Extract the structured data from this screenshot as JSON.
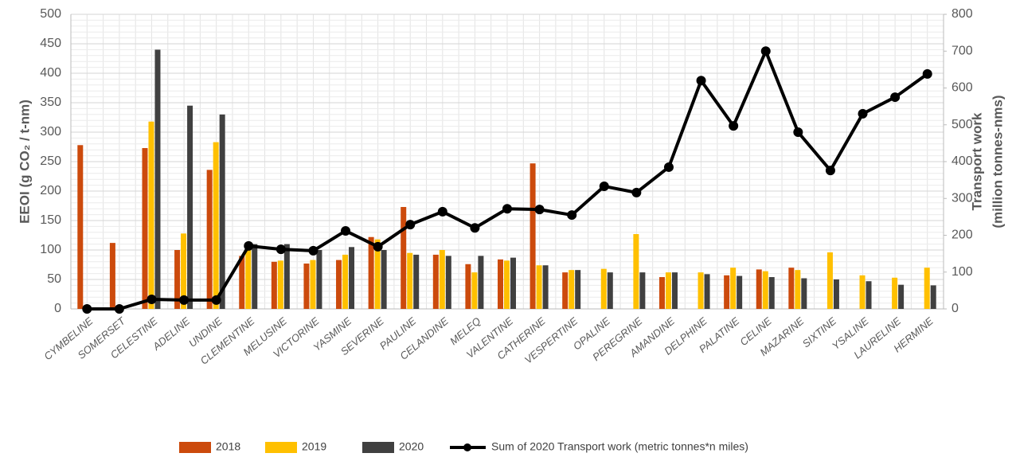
{
  "chart_data": {
    "type": "bar",
    "y_label": "EEOI (g CO₂ / t-nm)",
    "y2_label": [
      "Transport work",
      "(million tonnes-nms)"
    ],
    "categories": [
      "CYMBELINE",
      "SOMERSET",
      "CELESTINE",
      "ADELINE",
      "UNDINE",
      "CLEMENTINE",
      "MELUSINE",
      "VICTORINE",
      "YASMINE",
      "SEVERINE",
      "PAULINE",
      "CELANDINE",
      "MELEQ",
      "VALENTINE",
      "CATHERINE",
      "VESPERTINE",
      "OPALINE",
      "PEREGRINE",
      "AMANDINE",
      "DELPHINE",
      "PALATINE",
      "CELINE",
      "MAZARINE",
      "SIXTINE",
      "YSALINE",
      "LAURELINE",
      "HERMINE"
    ],
    "series": [
      {
        "name": "2018",
        "type": "bar",
        "color": "#cc4a0c",
        "values": [
          278,
          112,
          273,
          100,
          236,
          90,
          80,
          77,
          83,
          122,
          173,
          92,
          76,
          84,
          247,
          62,
          null,
          null,
          54,
          null,
          57,
          67,
          70,
          null,
          null,
          null,
          null
        ]
      },
      {
        "name": "2019",
        "type": "bar",
        "color": "#ffc000",
        "values": [
          null,
          null,
          318,
          128,
          283,
          100,
          82,
          83,
          92,
          118,
          95,
          100,
          62,
          82,
          74,
          66,
          68,
          127,
          62,
          62,
          70,
          64,
          66,
          96,
          57,
          53,
          70
        ]
      },
      {
        "name": "2020",
        "type": "bar",
        "color": "#404040",
        "values": [
          null,
          null,
          440,
          345,
          330,
          110,
          110,
          100,
          105,
          100,
          92,
          90,
          90,
          87,
          74,
          66,
          62,
          62,
          62,
          59,
          56,
          54,
          52,
          50,
          47,
          41,
          40
        ]
      },
      {
        "name": "Sum of 2020 Transport work (metric tonnes*n miles)",
        "type": "line",
        "axis": "y2",
        "color": "#000000",
        "values": [
          0,
          0,
          26,
          24,
          24,
          171,
          162,
          158,
          212,
          169,
          229,
          264,
          220,
          272,
          270,
          255,
          333,
          316,
          385,
          620,
          497,
          700,
          480,
          376,
          530,
          575,
          638
        ]
      }
    ],
    "ylim": [
      0,
      500
    ],
    "yticks": [
      0,
      50,
      100,
      150,
      200,
      250,
      300,
      350,
      400,
      450,
      500
    ],
    "y2lim": [
      0,
      800
    ],
    "y2ticks": [
      0,
      100,
      200,
      300,
      400,
      500,
      600,
      700,
      800
    ],
    "grid": true,
    "legend": "bottom"
  }
}
